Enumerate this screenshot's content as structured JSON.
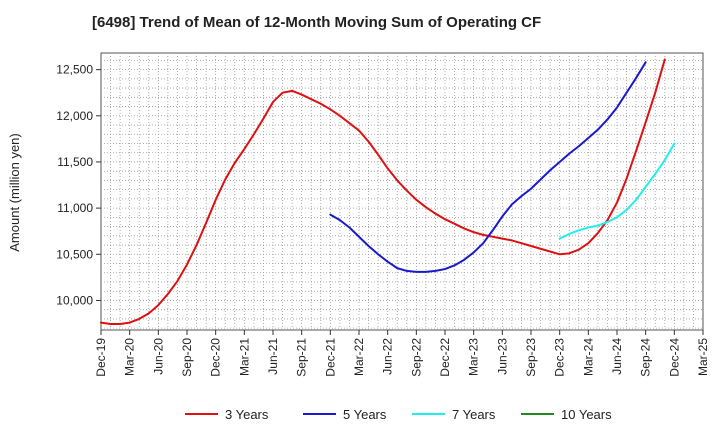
{
  "chart_data": {
    "type": "line",
    "title": "[6498]  Trend of Mean of 12-Month Moving Sum of Operating CF",
    "xlabel": "",
    "ylabel": "Amount (million yen)",
    "ylim": [
      9680,
      12680
    ],
    "yticks": [
      10000,
      10500,
      11000,
      11500,
      12000,
      12500
    ],
    "ytick_labels": [
      "10,000",
      "10,500",
      "11,000",
      "11,500",
      "12,000",
      "12,500"
    ],
    "xrange_month_index": [
      0,
      63
    ],
    "xtick_labels": [
      "Dec-19",
      "Mar-20",
      "Jun-20",
      "Sep-20",
      "Dec-20",
      "Mar-21",
      "Jun-21",
      "Sep-21",
      "Dec-21",
      "Mar-22",
      "Jun-22",
      "Sep-22",
      "Dec-22",
      "Mar-23",
      "Jun-23",
      "Sep-23",
      "Dec-23",
      "Mar-24",
      "Jun-24",
      "Sep-24",
      "Dec-24",
      "Mar-25"
    ],
    "grid": true,
    "legend_position": "bottom",
    "series": [
      {
        "name": "3 Years",
        "color": "#dd1111",
        "start_index": 0,
        "values": [
          9760,
          9745,
          9745,
          9760,
          9800,
          9860,
          9950,
          10070,
          10210,
          10390,
          10600,
          10840,
          11090,
          11310,
          11490,
          11640,
          11800,
          11970,
          12150,
          12250,
          12270,
          12230,
          12180,
          12130,
          12070,
          12000,
          11920,
          11840,
          11720,
          11580,
          11430,
          11300,
          11190,
          11090,
          11010,
          10940,
          10880,
          10830,
          10780,
          10740,
          10710,
          10690,
          10670,
          10650,
          10620,
          10590,
          10560,
          10530,
          10500,
          10510,
          10550,
          10620,
          10730,
          10870,
          11060,
          11320,
          11620,
          11930,
          12250,
          12610
        ]
      },
      {
        "name": "5 Years",
        "color": "#1a1acc",
        "start_index": 24,
        "values": [
          10930,
          10870,
          10790,
          10690,
          10590,
          10500,
          10420,
          10350,
          10320,
          10310,
          10310,
          10320,
          10340,
          10380,
          10440,
          10520,
          10620,
          10760,
          10910,
          11040,
          11130,
          11210,
          11310,
          11410,
          11500,
          11590,
          11670,
          11760,
          11850,
          11960,
          12090,
          12250,
          12410,
          12580
        ]
      },
      {
        "name": "7 Years",
        "color": "#22eeee",
        "start_index": 48,
        "values": [
          10670,
          10720,
          10760,
          10790,
          10810,
          10850,
          10900,
          10980,
          11090,
          11230,
          11370,
          11520,
          11700
        ]
      },
      {
        "name": "10 Years",
        "color": "#228822",
        "start_index": 0,
        "values": []
      }
    ]
  }
}
